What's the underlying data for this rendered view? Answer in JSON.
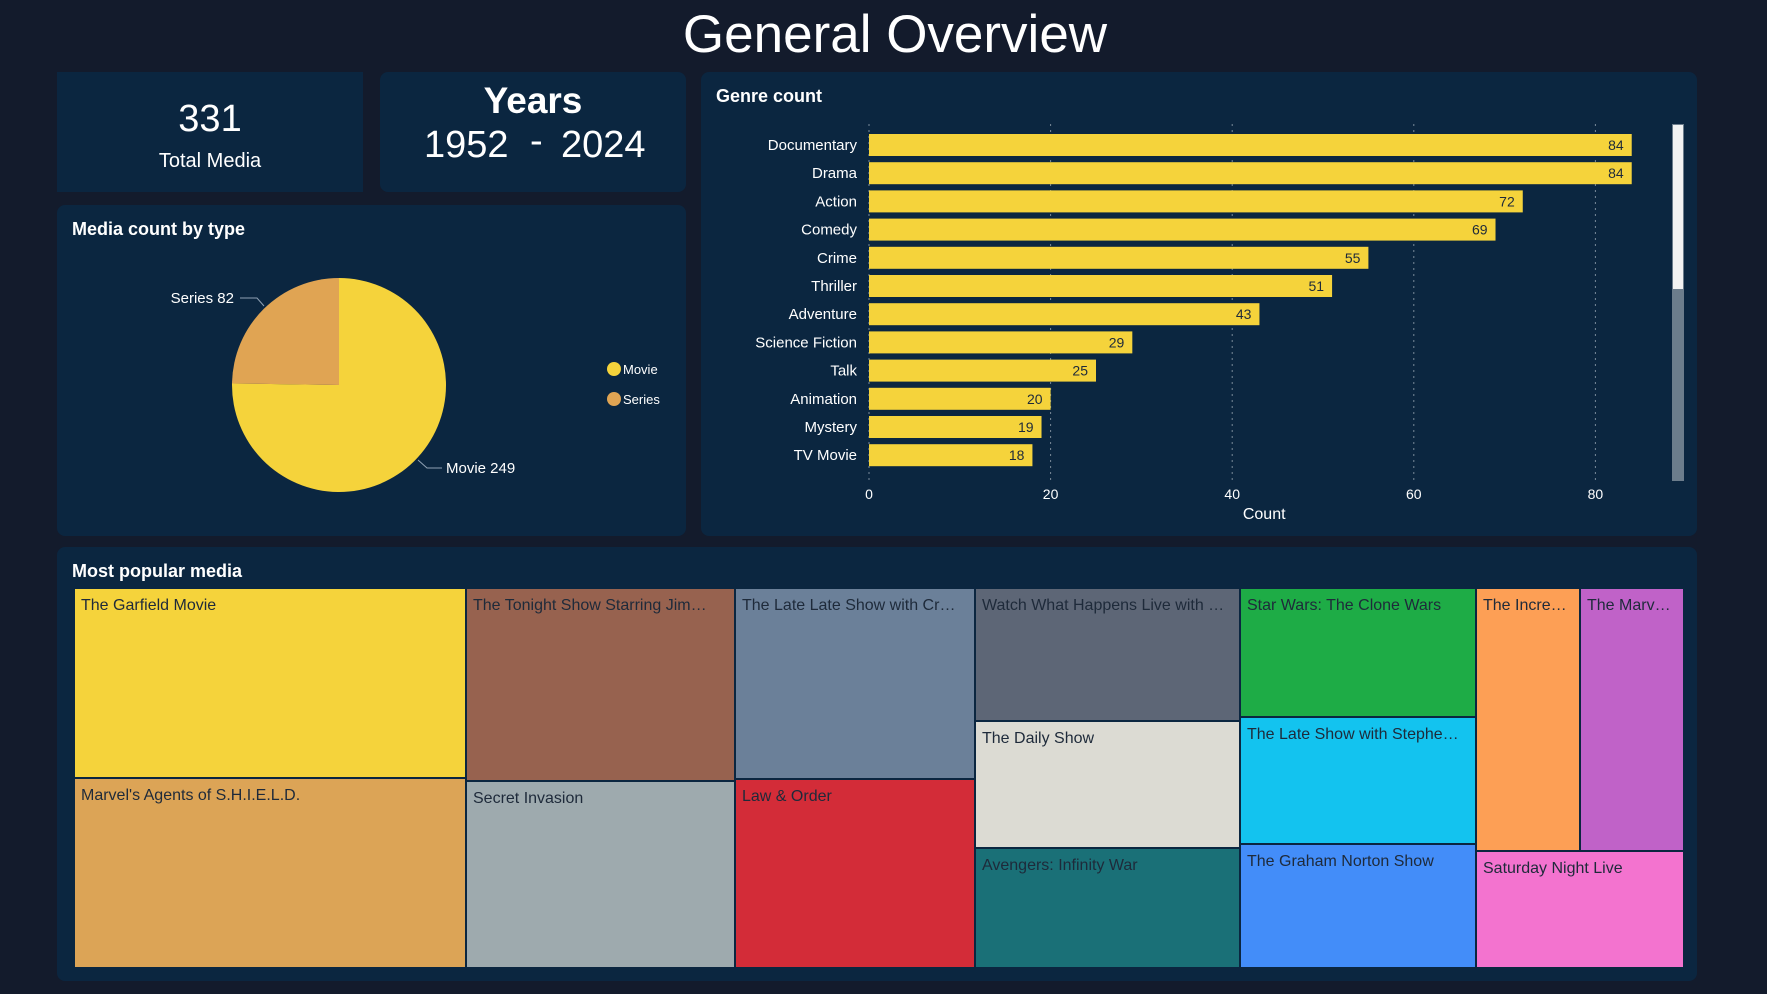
{
  "page_title": "General Overview",
  "kpi_total": {
    "value": "331",
    "label": "Total Media"
  },
  "kpi_years": {
    "label": "Years",
    "start": "1952",
    "separator": "-",
    "end": "2024"
  },
  "pie": {
    "title": "Media count by type",
    "legend": [
      "Movie",
      "Series"
    ],
    "labels": [
      "Movie 249",
      "Series 82"
    ]
  },
  "bar": {
    "title": "Genre count"
  },
  "treemap": {
    "title": "Most popular media",
    "items": [
      {
        "name": "The Garfield Movie",
        "label": "The Garfield Movie",
        "color": "#f5d33b"
      },
      {
        "name": "Marvel's Agents of S.H.I.E.L.D.",
        "label": "Marvel's Agents of S.H.I.E.L.D.",
        "color": "#dca456"
      },
      {
        "name": "The Tonight Show Starring Jimmy Fallon",
        "label": "The Tonight Show Starring Jim…",
        "color": "#97624f"
      },
      {
        "name": "Secret Invasion",
        "label": "Secret Invasion",
        "color": "#9eaaae"
      },
      {
        "name": "The Late Late Show with Craig Ferguson",
        "label": "The Late Late Show with Cr…",
        "color": "#6b8099"
      },
      {
        "name": "Law & Order",
        "label": "Law & Order",
        "color": "#d32c38"
      },
      {
        "name": "Watch What Happens Live with Andy Cohen",
        "label": "Watch What Happens Live with …",
        "color": "#5d6676"
      },
      {
        "name": "The Daily Show",
        "label": "The Daily Show",
        "color": "#dcdbd3"
      },
      {
        "name": "Avengers: Infinity War",
        "label": "Avengers: Infinity War",
        "color": "#1a7077"
      },
      {
        "name": "Star Wars: The Clone Wars",
        "label": "Star Wars: The Clone Wars",
        "color": "#1eac46"
      },
      {
        "name": "The Late Show with Stephen Colbert",
        "label": "The Late Show with Stephe…",
        "color": "#13c3ef"
      },
      {
        "name": "The Graham Norton Show",
        "label": "The Graham Norton Show",
        "color": "#438df9"
      },
      {
        "name": "The Incredibles",
        "label": "The Incre…",
        "color": "#fd9f55"
      },
      {
        "name": "The Marvels",
        "label": "The Marv…",
        "color": "#c062c8"
      },
      {
        "name": "Saturday Night Live",
        "label": "Saturday Night Live",
        "color": "#f373cf"
      }
    ]
  },
  "colors": {
    "background": "#131b2c",
    "card": "#0b2640",
    "bar": "#f5d33b",
    "movie": "#f5d33b",
    "series": "#e0a453"
  },
  "chart_data": [
    {
      "type": "pie",
      "title": "Media count by type",
      "categories": [
        "Movie",
        "Series"
      ],
      "values": [
        249,
        82
      ],
      "legend_position": "right"
    },
    {
      "type": "bar",
      "orientation": "horizontal",
      "title": "Genre count",
      "categories": [
        "Documentary",
        "Drama",
        "Action",
        "Comedy",
        "Crime",
        "Thriller",
        "Adventure",
        "Science Fiction",
        "Talk",
        "Animation",
        "Mystery",
        "TV Movie"
      ],
      "values": [
        84,
        84,
        72,
        69,
        55,
        51,
        43,
        29,
        25,
        20,
        19,
        18
      ],
      "xlabel": "Count",
      "ylabel": "",
      "xlim": [
        0,
        90
      ],
      "xticks": [
        0,
        20,
        40,
        60,
        80
      ],
      "grid": "vertical dotted"
    }
  ]
}
